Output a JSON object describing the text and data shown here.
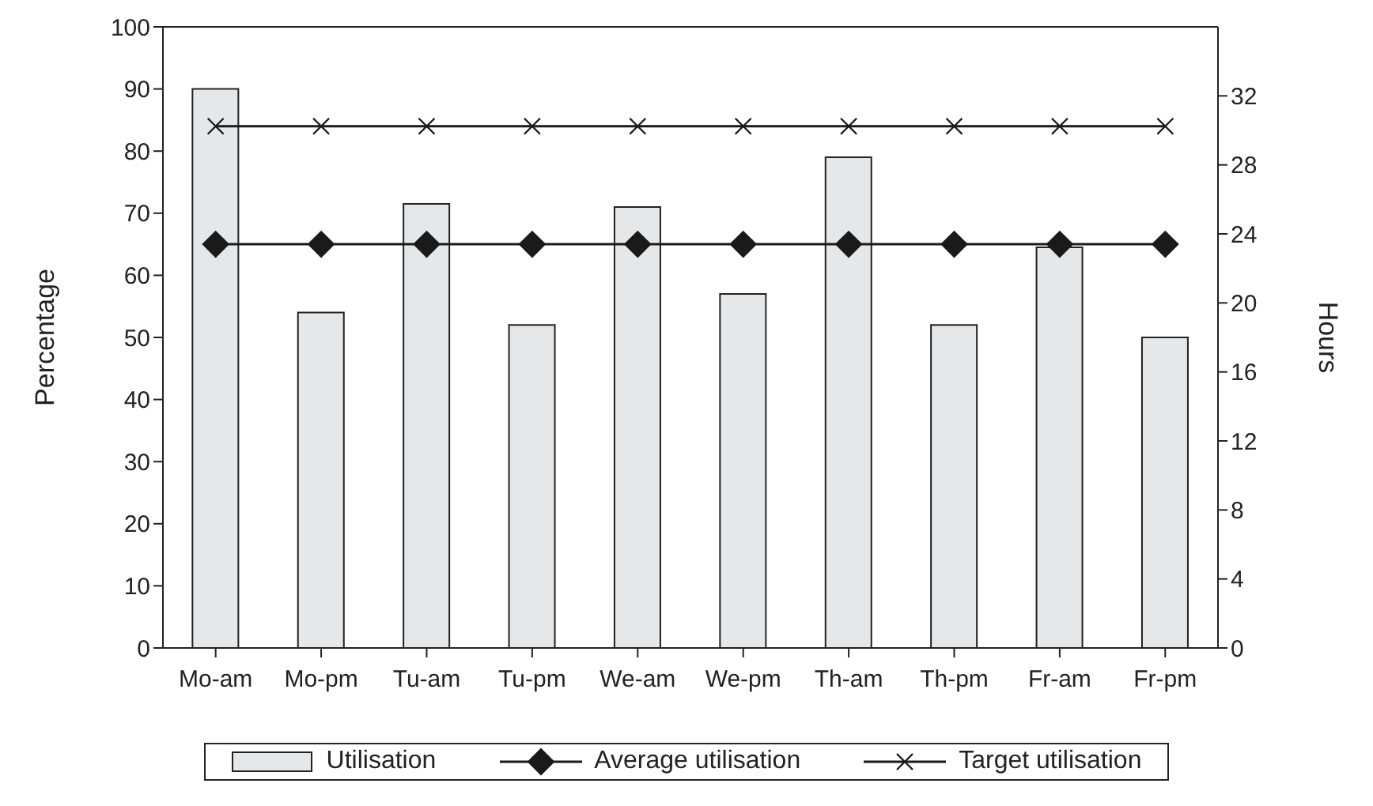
{
  "chart_data": {
    "type": "bar",
    "categories": [
      "Mo-am",
      "Mo-pm",
      "Tu-am",
      "Tu-pm",
      "We-am",
      "We-pm",
      "Th-am",
      "Th-pm",
      "Fr-am",
      "Fr-pm"
    ],
    "series": [
      {
        "name": "Utilisation",
        "color": "#e6e7e9",
        "values": [
          90,
          54,
          71.5,
          52,
          71,
          57,
          79,
          52,
          64.5,
          50
        ]
      },
      {
        "name": "Average utilisation",
        "type": "line",
        "color": "#1a1a1a",
        "marker": "diamond",
        "values": [
          65,
          65,
          65,
          65,
          65,
          65,
          65,
          65,
          65,
          65
        ]
      },
      {
        "name": "Target utilisation",
        "type": "line",
        "color": "#1a1a1a",
        "marker": "cross",
        "values": [
          84,
          84,
          84,
          84,
          84,
          84,
          84,
          84,
          84,
          84
        ]
      }
    ],
    "ylabel": "Percentage",
    "y2label": "Hours",
    "ylim": [
      0,
      100
    ],
    "yticks": [
      0,
      10,
      20,
      30,
      40,
      50,
      60,
      70,
      80,
      90,
      100
    ],
    "y2lim": [
      0,
      36
    ],
    "y2ticks": [
      0,
      4,
      8,
      12,
      16,
      20,
      24,
      28,
      32
    ],
    "grid": false,
    "legend": "bottom"
  }
}
